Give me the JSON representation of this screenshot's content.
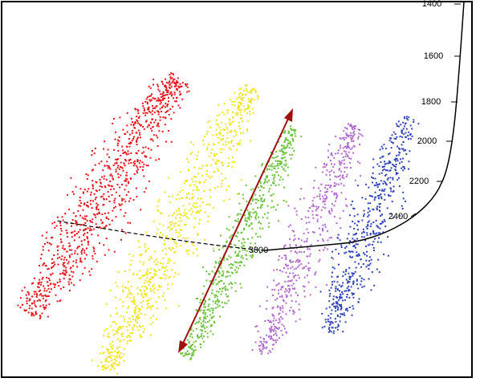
{
  "axis_labels": [
    "1400",
    "1600",
    "1800",
    "2000",
    "2200",
    "2400",
    "3000"
  ]
}
